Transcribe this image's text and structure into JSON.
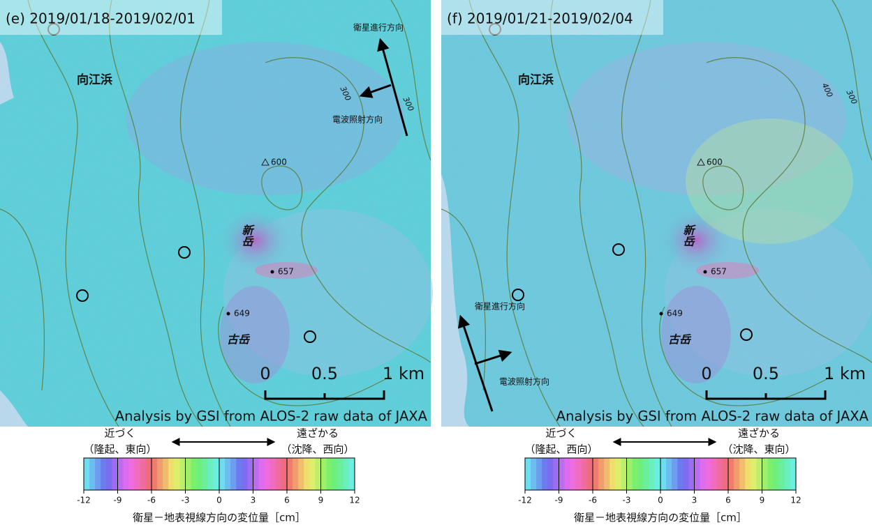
{
  "panels": [
    {
      "label": "(e) 2019/01/18-2019/02/01",
      "map": {
        "place": "向江浜",
        "shindake": "新岳",
        "furudake": "古岳",
        "elevations": [
          "600",
          "657",
          "649"
        ],
        "contour_labels": [
          "300",
          "300"
        ],
        "satellite_direction": "衛星進行方向",
        "radar_direction": "電波照射方向",
        "scale": [
          "0",
          "0.5",
          "1 km"
        ],
        "credit": "Analysis by GSI from ALOS-2 raw data of JAXA"
      },
      "legend": {
        "approach": "近づく",
        "approach_detail": "（隆起、東向）",
        "recede": "遠ざかる",
        "recede_detail": "（沈降、西向）",
        "ticks": [
          -12,
          -9,
          -6,
          -3,
          0,
          3,
          6,
          9,
          12
        ],
        "title": "衛星－地表視線方向の変位量［cm］"
      }
    },
    {
      "label": "(f) 2019/01/21-2019/02/04",
      "map": {
        "place": "向江浜",
        "shindake": "新岳",
        "furudake": "古岳",
        "elevations": [
          "600",
          "657",
          "649"
        ],
        "contour_labels": [
          "400",
          "300"
        ],
        "satellite_direction": "衛星進行方向",
        "radar_direction": "電波照射方向",
        "scale": [
          "0",
          "0.5",
          "1 km"
        ],
        "credit": "Analysis by GSI from ALOS-2 raw data of JAXA"
      },
      "legend": {
        "approach": "近づく",
        "approach_detail": "（隆起、西向）",
        "recede": "遠ざかる",
        "recede_detail": "（沈降、東向）",
        "ticks": [
          -12,
          -9,
          -6,
          -3,
          0,
          3,
          6,
          9,
          12
        ],
        "title": "衛星－地表視線方向の変位量［cm］"
      }
    }
  ]
}
